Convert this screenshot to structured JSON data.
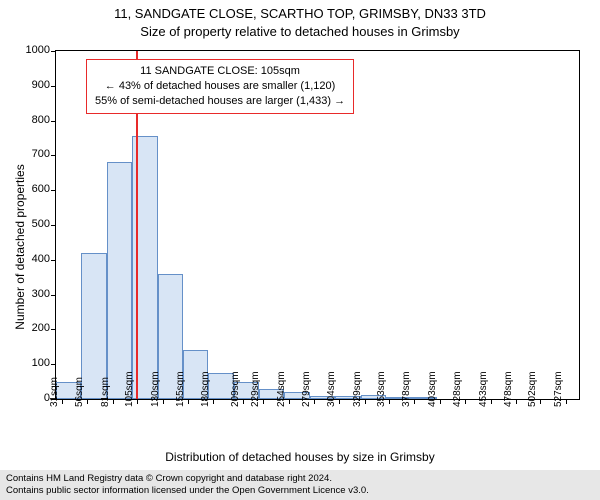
{
  "title_line1": "11, SANDGATE CLOSE, SCARTHO TOP, GRIMSBY, DN33 3TD",
  "title_line2": "Size of property relative to detached houses in Grimsby",
  "ylabel": "Number of detached properties",
  "xlabel": "Distribution of detached houses by size in Grimsby",
  "chart": {
    "type": "histogram",
    "background_color": "#ffffff",
    "border_color": "#000000",
    "bar_fill": "#d8e5f5",
    "bar_border": "#6590c8",
    "refline_color": "#e82a2a",
    "refline_x": 105,
    "ylim": [
      0,
      1000
    ],
    "ytick_step": 100,
    "yticks": [
      0,
      100,
      200,
      300,
      400,
      500,
      600,
      700,
      800,
      900,
      1000
    ],
    "xlim": [
      25,
      540
    ],
    "xticks": [
      31,
      56,
      81,
      105,
      130,
      155,
      180,
      209,
      229,
      254,
      279,
      304,
      329,
      353,
      378,
      403,
      428,
      453,
      478,
      502,
      527
    ],
    "xtick_unit": "sqm",
    "bin_width": 25,
    "bins": [
      {
        "x": 25,
        "count": 50
      },
      {
        "x": 50,
        "count": 420
      },
      {
        "x": 75,
        "count": 680
      },
      {
        "x": 100,
        "count": 755
      },
      {
        "x": 125,
        "count": 360
      },
      {
        "x": 150,
        "count": 140
      },
      {
        "x": 175,
        "count": 75
      },
      {
        "x": 200,
        "count": 50
      },
      {
        "x": 225,
        "count": 30
      },
      {
        "x": 250,
        "count": 20
      },
      {
        "x": 275,
        "count": 10
      },
      {
        "x": 300,
        "count": 8
      },
      {
        "x": 325,
        "count": 12
      },
      {
        "x": 350,
        "count": 4
      },
      {
        "x": 375,
        "count": 3
      },
      {
        "x": 400,
        "count": 0
      },
      {
        "x": 425,
        "count": 0
      },
      {
        "x": 450,
        "count": 0
      },
      {
        "x": 475,
        "count": 0
      },
      {
        "x": 500,
        "count": 0
      },
      {
        "x": 525,
        "count": 0
      }
    ]
  },
  "annotation": {
    "line1": "11 SANDGATE CLOSE: 105sqm",
    "line2": "← 43% of detached houses are smaller (1,120)",
    "line3": "55% of semi-detached houses are larger (1,433) →",
    "border_color": "#e82a2a",
    "fontsize": 11
  },
  "footer": {
    "line1": "Contains HM Land Registry data © Crown copyright and database right 2024.",
    "line2": "Contains public sector information licensed under the Open Government Licence v3.0.",
    "background_color": "#e7e7e7"
  }
}
